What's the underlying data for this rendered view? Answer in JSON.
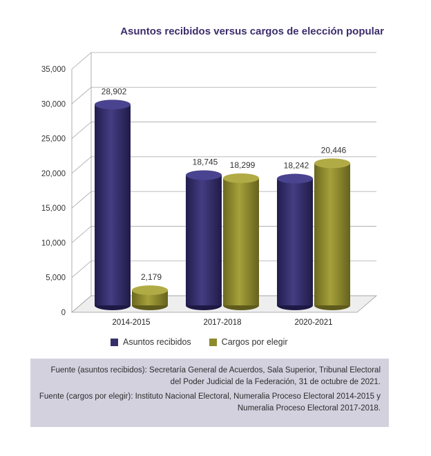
{
  "chart_data": {
    "type": "bar",
    "title": "Asuntos recibidos versus cargos de elección popular",
    "categories": [
      "2014-2015",
      "2017-2018",
      "2020-2021"
    ],
    "series": [
      {
        "name": "Asuntos recibidos",
        "values": [
          28902,
          18745,
          18242
        ],
        "labels": [
          "28,902",
          "18,745",
          "18,242"
        ],
        "color": "#35306a"
      },
      {
        "name": "Cargos por elegir",
        "values": [
          2179,
          18299,
          20446
        ],
        "labels": [
          "2,179",
          "18,299",
          "20,446"
        ],
        "color": "#8e8a2c"
      }
    ],
    "ylim": [
      0,
      35000
    ],
    "yticks": [
      0,
      5000,
      10000,
      15000,
      20000,
      25000,
      30000,
      35000
    ],
    "ytick_labels": [
      "0",
      "5,000",
      "10,000",
      "15,000",
      "20,000",
      "25,000",
      "30,000",
      "35,000"
    ],
    "grid": true,
    "legend_position": "bottom"
  },
  "legend": {
    "item1": "Asuntos recibidos",
    "item2": "Cargos por elegir"
  },
  "source": {
    "line1": "Fuente (asuntos recibidos): Secretaría General de Acuerdos, Sala Superior, Tribunal Electoral del Poder Judicial de la Federación, 31 de octubre de 2021.",
    "line2": "Fuente (cargos por elegir): Instituto Nacional Electoral, Numeralia Proceso Electoral 2014-2015 y Numeralia Proceso Electoral 2017-2018."
  }
}
